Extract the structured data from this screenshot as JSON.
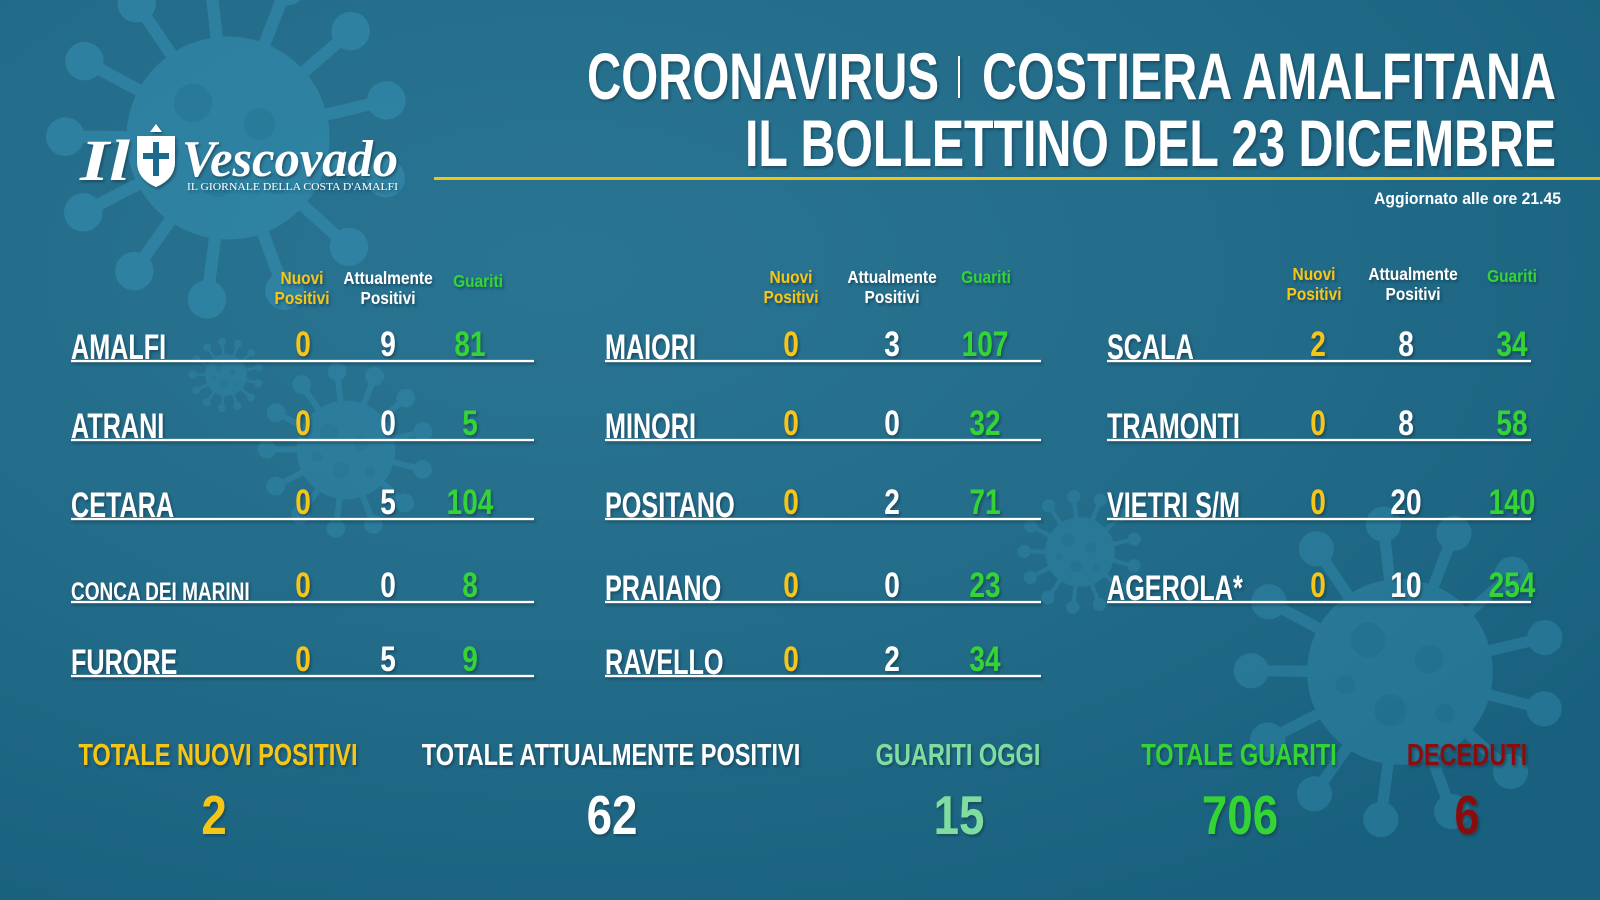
{
  "logo": {
    "prefix": "Il",
    "name": "Vescovado",
    "tagline": "IL GIORNALE DELLA COSTA D'AMALFI",
    "icon": "shield-cross-icon"
  },
  "title": {
    "part1": "CORONAVIRUS",
    "part2": "COSTIERA AMALFITANA",
    "line2": "IL BOLLETTINO DEL 23 DICEMBRE"
  },
  "updated": "Aggiornato alle ore 21.45",
  "headers": {
    "new_positive": {
      "line1": "Nuovi",
      "line2": "Positivi"
    },
    "current_positive": {
      "line1": "Attualmente",
      "line2": "Positivi"
    },
    "recovered": "Guariti"
  },
  "columns": [
    {
      "rows": [
        {
          "name": "AMALFI",
          "new_positive": 0,
          "current_positive": 9,
          "recovered": 81
        },
        {
          "name": "ATRANI",
          "new_positive": 0,
          "current_positive": 0,
          "recovered": 5
        },
        {
          "name": "CETARA",
          "new_positive": 0,
          "current_positive": 5,
          "recovered": 104
        },
        {
          "name": "CONCA DEI MARINI",
          "new_positive": 0,
          "current_positive": 0,
          "recovered": 8
        },
        {
          "name": "FURORE",
          "new_positive": 0,
          "current_positive": 5,
          "recovered": 9
        }
      ]
    },
    {
      "rows": [
        {
          "name": "MAIORI",
          "new_positive": 0,
          "current_positive": 3,
          "recovered": 107
        },
        {
          "name": "MINORI",
          "new_positive": 0,
          "current_positive": 0,
          "recovered": 32
        },
        {
          "name": "POSITANO",
          "new_positive": 0,
          "current_positive": 2,
          "recovered": 71
        },
        {
          "name": "PRAIANO",
          "new_positive": 0,
          "current_positive": 0,
          "recovered": 23
        },
        {
          "name": "RAVELLO",
          "new_positive": 0,
          "current_positive": 2,
          "recovered": 34
        }
      ]
    },
    {
      "rows": [
        {
          "name": "SCALA",
          "new_positive": 2,
          "current_positive": 8,
          "recovered": 34
        },
        {
          "name": "TRAMONTI",
          "new_positive": 0,
          "current_positive": 8,
          "recovered": 58
        },
        {
          "name": "VIETRI S/M",
          "new_positive": 0,
          "current_positive": 20,
          "recovered": 140
        },
        {
          "name": "AGEROLA*",
          "new_positive": 0,
          "current_positive": 10,
          "recovered": 254
        }
      ]
    }
  ],
  "totals": [
    {
      "label": "TOTALE NUOVI POSITIVI",
      "value": 2,
      "color": "#f6c619"
    },
    {
      "label": "TOTALE ATTUALMENTE POSITIVI",
      "value": 62,
      "color": "#ffffff"
    },
    {
      "label": "GUARITI OGGI",
      "value": 15,
      "color": "#7fdd9f"
    },
    {
      "label": "TOTALE GUARITI",
      "value": 706,
      "color": "#34d434"
    },
    {
      "label": "DECEDUTI",
      "value": 6,
      "color": "#8a1111"
    }
  ],
  "colors": {
    "background": "#1b6b8b",
    "decoration": "#3690b2",
    "rule": "#f2c40f",
    "new_positive": "#f6c619",
    "current_positive": "#ffffff",
    "recovered": "#34d434",
    "text": "#ffffff"
  },
  "decoration_icon": "virus-icon"
}
